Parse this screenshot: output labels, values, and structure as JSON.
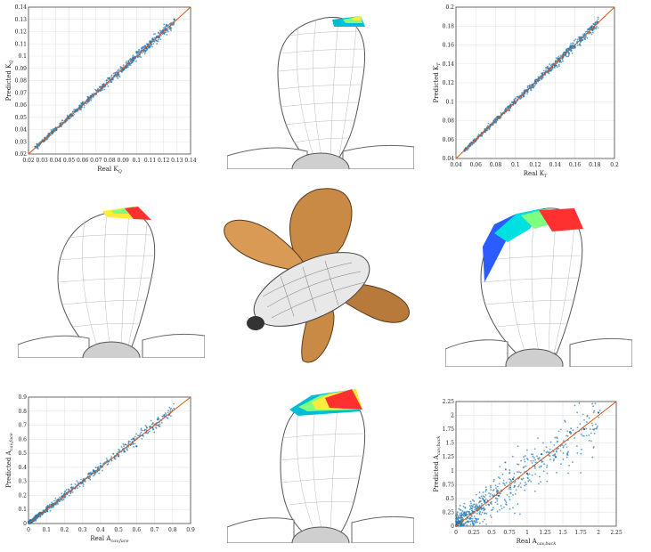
{
  "chart_data": [
    {
      "type": "scatter",
      "xlabel": "Real K",
      "xlabel_sub": "Q",
      "ylabel": "Predicted K",
      "ylabel_sub": "Q",
      "xlim": [
        0.02,
        0.14
      ],
      "ylim": [
        0.02,
        0.14
      ],
      "xticks": [
        "0.02",
        "0.03",
        "0.04",
        "0.05",
        "0.06",
        "0.07",
        "0.08",
        "0.09",
        "0.1",
        "0.11",
        "0.12",
        "0.13",
        "0.14"
      ],
      "yticks": [
        "0.02",
        "0.03",
        "0.04",
        "0.05",
        "0.06",
        "0.07",
        "0.08",
        "0.09",
        "0.1",
        "0.11",
        "0.12",
        "0.13",
        "0.14"
      ],
      "grid": true,
      "identity_line": [
        [
          0.02,
          0.02
        ],
        [
          0.14,
          0.14
        ]
      ],
      "series": [
        {
          "points": [
            [
              0.025,
              0.026
            ],
            [
              0.032,
              0.031
            ],
            [
              0.04,
              0.041
            ],
            [
              0.05,
              0.049
            ],
            [
              0.06,
              0.061
            ],
            [
              0.07,
              0.069
            ],
            [
              0.08,
              0.082
            ],
            [
              0.09,
              0.089
            ],
            [
              0.1,
              0.103
            ],
            [
              0.11,
              0.108
            ],
            [
              0.12,
              0.121
            ],
            [
              0.128,
              0.13
            ]
          ]
        }
      ],
      "colors": {
        "points": "#1f77b4",
        "line": "#d95319"
      }
    },
    {
      "type": "scatter",
      "xlabel": "Real K",
      "xlabel_sub": "T",
      "ylabel": "Predicted K",
      "ylabel_sub": "T",
      "xlim": [
        0.04,
        0.2
      ],
      "ylim": [
        0.04,
        0.2
      ],
      "xticks": [
        "0.04",
        "0.06",
        "0.08",
        "0.1",
        "0.12",
        "0.14",
        "0.16",
        "0.18",
        "0.2"
      ],
      "yticks": [
        "0.04",
        "0.06",
        "0.08",
        "0.1",
        "0.12",
        "0.14",
        "0.16",
        "0.18",
        "0.2"
      ],
      "grid": true,
      "identity_line": [
        [
          0.04,
          0.04
        ],
        [
          0.2,
          0.2
        ]
      ],
      "series": [
        {
          "points": [
            [
              0.05,
              0.051
            ],
            [
              0.06,
              0.059
            ],
            [
              0.08,
              0.081
            ],
            [
              0.1,
              0.099
            ],
            [
              0.12,
              0.122
            ],
            [
              0.14,
              0.138
            ],
            [
              0.15,
              0.152
            ],
            [
              0.16,
              0.158
            ]
          ]
        }
      ],
      "colors": {
        "points": "#1f77b4",
        "line": "#d95319"
      }
    },
    {
      "type": "scatter",
      "xlabel": "Real A",
      "xlabel_sub": "cav,face",
      "ylabel": "Predicted A",
      "ylabel_sub": "cav,face",
      "xlim": [
        0,
        0.9
      ],
      "ylim": [
        0,
        0.9
      ],
      "xticks": [
        "0",
        "0.1",
        "0.2",
        "0.3",
        "0.4",
        "0.5",
        "0.6",
        "0.7",
        "0.8",
        "0.9"
      ],
      "yticks": [
        "0",
        "0.1",
        "0.2",
        "0.3",
        "0.4",
        "0.5",
        "0.6",
        "0.7",
        "0.8",
        "0.9"
      ],
      "grid": true,
      "identity_line": [
        [
          0,
          0
        ],
        [
          0.9,
          0.9
        ]
      ],
      "series": [
        {
          "points": [
            [
              0.01,
              0.02
            ],
            [
              0.05,
              0.06
            ],
            [
              0.1,
              0.1
            ],
            [
              0.15,
              0.14
            ],
            [
              0.2,
              0.21
            ],
            [
              0.3,
              0.29
            ],
            [
              0.4,
              0.41
            ],
            [
              0.5,
              0.48
            ],
            [
              0.6,
              0.55
            ],
            [
              0.72,
              0.7
            ]
          ]
        }
      ],
      "colors": {
        "points": "#1f77b4",
        "line": "#d95319"
      }
    },
    {
      "type": "scatter",
      "xlabel": "Real A",
      "xlabel_sub": "cav,back",
      "ylabel": "Predicted A",
      "ylabel_sub": "cav,back",
      "xlim": [
        0,
        2.25
      ],
      "ylim": [
        0,
        2.25
      ],
      "xticks": [
        "0",
        "0.25",
        "0.5",
        "0.75",
        "1",
        "1.25",
        "1.5",
        "1.75",
        "2",
        "2.25"
      ],
      "yticks": [
        "0",
        "0.25",
        "0.5",
        "0.75",
        "1",
        "1.25",
        "1.5",
        "1.75",
        "2",
        "2.25"
      ],
      "grid": true,
      "identity_line": [
        [
          0,
          0
        ],
        [
          2.25,
          2.25
        ]
      ],
      "series": [
        {
          "points": [
            [
              0.05,
              0.08
            ],
            [
              0.2,
              0.22
            ],
            [
              0.4,
              0.45
            ],
            [
              0.6,
              0.55
            ],
            [
              0.8,
              0.85
            ],
            [
              1.0,
              0.95
            ],
            [
              1.2,
              1.3
            ],
            [
              1.4,
              1.25
            ],
            [
              1.6,
              1.7
            ],
            [
              1.8,
              1.75
            ],
            [
              2.0,
              2.05
            ]
          ]
        }
      ],
      "colors": {
        "points": "#1f77b4",
        "line": "#d95319"
      }
    }
  ],
  "illustrations": [
    {
      "name": "blade-view-1",
      "heat_colors": [
        "#00bcd4",
        "#7fff7f",
        "#ffeb3b"
      ]
    },
    {
      "name": "blade-view-2",
      "heat_colors": [
        "#ffeb3b",
        "#7fff7f",
        "#ff3030"
      ]
    },
    {
      "name": "propeller-3d",
      "colors": {
        "blade": "#c98a46",
        "hub": "#e8e8e8"
      }
    },
    {
      "name": "blade-view-3",
      "heat_colors": [
        "#2a5cff",
        "#00e0e0",
        "#7fff7f",
        "#ff3030"
      ]
    },
    {
      "name": "blade-view-4",
      "heat_colors": [
        "#00bcd4",
        "#7fff7f",
        "#ffeb3b",
        "#ff3030"
      ]
    }
  ]
}
